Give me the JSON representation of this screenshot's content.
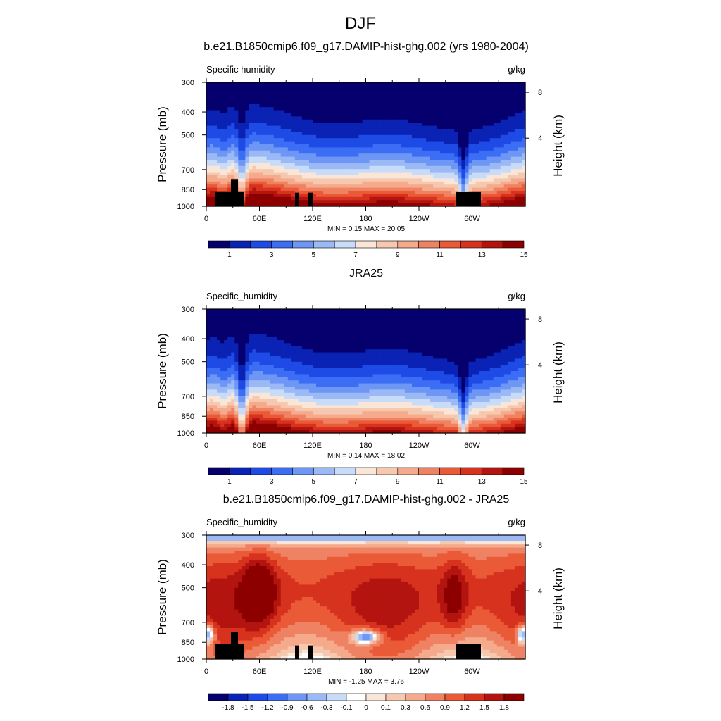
{
  "page": {
    "season": "DJF"
  },
  "chart_data": [
    {
      "type": "heatmap",
      "title": "b.e21.B1850cmip6.f09_g17.DAMIP-hist-ghg.002 (yrs 1980-2004)",
      "left_label": "Specific humidity",
      "right_label": "g/kg",
      "ylabel": "Pressure (mb)",
      "y2label": "Height (km)",
      "x_ticks": [
        "0",
        "60E",
        "120E",
        "180",
        "120W",
        "60W"
      ],
      "y_ticks": [
        "300",
        "400",
        "500",
        "700",
        "850",
        "1000"
      ],
      "y2_ticks": [
        "8",
        "4"
      ],
      "stats": {
        "min": 0.15,
        "max": 20.05
      },
      "minmax_text": "MIN =   0.15  MAX =  20.05",
      "colorbar_labels": [
        "1",
        "3",
        "5",
        "7",
        "9",
        "11",
        "13",
        "15"
      ],
      "colorbar_colors": [
        "#05006e",
        "#0a23b4",
        "#1e4be6",
        "#3c6ef5",
        "#6e96f5",
        "#9bb9f5",
        "#c8dcfa",
        "#fae6d7",
        "#f5c8af",
        "#f5aa8c",
        "#f08264",
        "#eb5a37",
        "#d7321e",
        "#b4140f",
        "#8c0000"
      ]
    },
    {
      "type": "heatmap",
      "title": "JRA25",
      "left_label": "Specific_humidity",
      "right_label": "g/kg",
      "ylabel": "Pressure (mb)",
      "y2label": "Height (km)",
      "x_ticks": [
        "0",
        "60E",
        "120E",
        "180",
        "120W",
        "60W"
      ],
      "y_ticks": [
        "300",
        "400",
        "500",
        "700",
        "850",
        "1000"
      ],
      "y2_ticks": [
        "8",
        "4"
      ],
      "stats": {
        "min": 0.14,
        "max": 18.02
      },
      "minmax_text": "MIN =   0.14  MAX =  18.02",
      "colorbar_labels": [
        "1",
        "3",
        "5",
        "7",
        "9",
        "11",
        "13",
        "15"
      ],
      "colorbar_colors": [
        "#05006e",
        "#0a23b4",
        "#1e4be6",
        "#3c6ef5",
        "#6e96f5",
        "#9bb9f5",
        "#c8dcfa",
        "#fae6d7",
        "#f5c8af",
        "#f5aa8c",
        "#f08264",
        "#eb5a37",
        "#d7321e",
        "#b4140f",
        "#8c0000"
      ]
    },
    {
      "type": "heatmap",
      "title": "b.e21.B1850cmip6.f09_g17.DAMIP-hist-ghg.002 - JRA25",
      "left_label": "Specific_humidity",
      "right_label": "g/kg",
      "ylabel": "Pressure (mb)",
      "y2label": "Height (km)",
      "x_ticks": [
        "0",
        "60E",
        "120E",
        "180",
        "120W",
        "60W"
      ],
      "y_ticks": [
        "300",
        "400",
        "500",
        "700",
        "850",
        "1000"
      ],
      "y2_ticks": [
        "8",
        "4"
      ],
      "stats": {
        "min": -1.25,
        "max": 3.76
      },
      "minmax_text": "MIN =  -1.25  MAX =   3.76",
      "colorbar_labels": [
        "-1.8",
        "-1.5",
        "-1.2",
        "-0.9",
        "-0.6",
        "-0.3",
        "-0.1",
        "0",
        "0.1",
        "0.3",
        "0.6",
        "0.9",
        "1.2",
        "1.5",
        "1.8"
      ],
      "colorbar_colors": [
        "#05006e",
        "#0a23b4",
        "#1e4be6",
        "#3c6ef5",
        "#6e96f5",
        "#9bb9f5",
        "#c8dcfa",
        "#ffffff",
        "#fae6d7",
        "#f5c8af",
        "#f5aa8c",
        "#f08264",
        "#eb5a37",
        "#d7321e",
        "#b4140f",
        "#8c0000"
      ]
    }
  ]
}
